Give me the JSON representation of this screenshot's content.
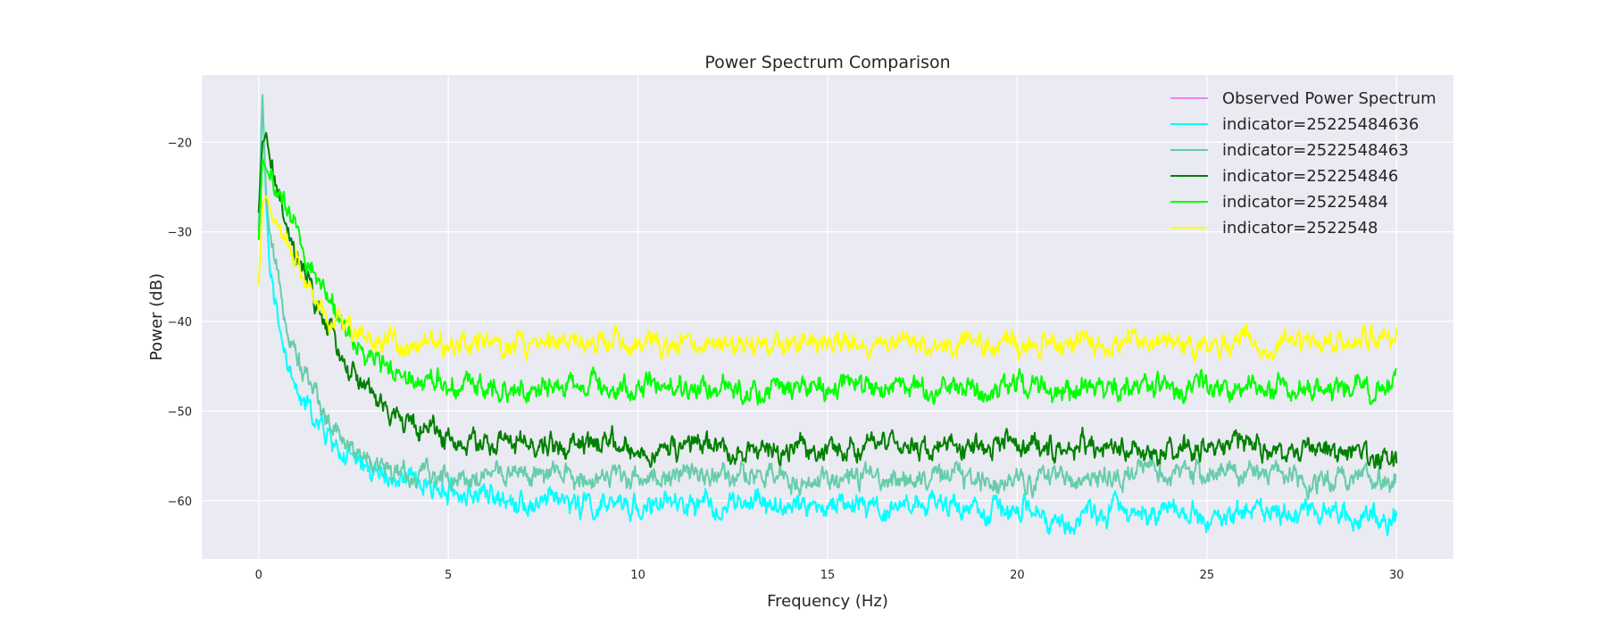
{
  "chart_data": {
    "type": "line",
    "title": "Power Spectrum Comparison",
    "xlabel": "Frequency (Hz)",
    "ylabel": "Power (dB)",
    "xlim": [
      -1.5,
      31.5
    ],
    "ylim": [
      -66.5,
      -12.5
    ],
    "xticks": [
      0,
      5,
      10,
      15,
      20,
      25,
      30
    ],
    "yticks": [
      -60,
      -50,
      -40,
      -30,
      -20
    ],
    "grid": true,
    "legend_position": "top-right",
    "series": [
      {
        "name": "Observed Power Spectrum",
        "color": "#ee82ee",
        "x": [],
        "y": []
      },
      {
        "name": "indicator=25225484636",
        "color": "#00ffff",
        "x": [
          0,
          0.05,
          0.1,
          0.2,
          0.3,
          0.5,
          0.75,
          1,
          1.5,
          2,
          2.5,
          3,
          3.5,
          4,
          4.5,
          5,
          6,
          7,
          8,
          9,
          10,
          12,
          14,
          16,
          18,
          20,
          21.4,
          22,
          24,
          25.2,
          26,
          28,
          30
        ],
        "y": [
          -30,
          -21,
          -15,
          -27,
          -35,
          -40,
          -45,
          -48,
          -51,
          -54,
          -55.5,
          -56.5,
          -57.5,
          -58,
          -58.5,
          -59,
          -59.5,
          -60,
          -60,
          -60.5,
          -60.5,
          -60.5,
          -60.5,
          -60.5,
          -60.5,
          -61,
          -63,
          -61,
          -61,
          -62,
          -61,
          -61,
          -62
        ]
      },
      {
        "name": "indicator=2522548463",
        "color": "#66cdaa",
        "x": [
          0,
          0.05,
          0.1,
          0.2,
          0.3,
          0.5,
          0.75,
          1,
          1.5,
          2,
          2.5,
          3,
          3.5,
          4,
          4.5,
          5,
          6,
          7,
          8,
          9,
          10,
          12,
          14,
          16,
          18,
          20,
          22,
          24,
          26,
          28,
          30
        ],
        "y": [
          -30,
          -22,
          -15,
          -26,
          -31,
          -36,
          -40,
          -44,
          -48,
          -52,
          -54,
          -56,
          -57,
          -57.5,
          -57,
          -57.5,
          -57,
          -57,
          -57.5,
          -57.5,
          -57.5,
          -57,
          -57.5,
          -57.5,
          -57.5,
          -57.5,
          -57.5,
          -57,
          -57,
          -57.5,
          -57.5
        ]
      },
      {
        "name": "indicator=252254846",
        "color": "#008000",
        "x": [
          0,
          0.1,
          0.2,
          0.3,
          0.5,
          0.75,
          1,
          1.5,
          2,
          2.5,
          3,
          3.5,
          4,
          4.5,
          5,
          6,
          7,
          8,
          9,
          10,
          12,
          14,
          16,
          18,
          20,
          22,
          24,
          26,
          28,
          30
        ],
        "y": [
          -28,
          -20,
          -19,
          -22,
          -26,
          -30,
          -33,
          -38,
          -42,
          -46,
          -48,
          -50,
          -51.5,
          -52,
          -53,
          -53.5,
          -54,
          -54,
          -54,
          -54.5,
          -54,
          -54.5,
          -54,
          -54,
          -54,
          -54,
          -54.5,
          -54,
          -54.5,
          -55
        ]
      },
      {
        "name": "indicator=25225484",
        "color": "#00ff00",
        "x": [
          0,
          0.1,
          0.2,
          0.3,
          0.5,
          0.75,
          1,
          1.5,
          2,
          2.5,
          3,
          3.5,
          4,
          4.5,
          5,
          6,
          7,
          8,
          9,
          10,
          12,
          14,
          16,
          18,
          20,
          22,
          24,
          26,
          28,
          30
        ],
        "y": [
          -31,
          -22,
          -23,
          -24,
          -26,
          -28,
          -30,
          -35,
          -38,
          -42,
          -44,
          -45,
          -46,
          -46.5,
          -47,
          -47,
          -47.5,
          -47.5,
          -47,
          -47.5,
          -47.5,
          -47.5,
          -47.5,
          -47.5,
          -47.5,
          -47.5,
          -47.5,
          -47.5,
          -47.5,
          -47.5
        ]
      },
      {
        "name": "indicator=2522548",
        "color": "#ffff00",
        "x": [
          0,
          0.1,
          0.2,
          0.3,
          0.5,
          0.75,
          1,
          1.5,
          2,
          2.5,
          3,
          3.5,
          4,
          4.5,
          5,
          6,
          7,
          8,
          9,
          10,
          12,
          14,
          16,
          18,
          20,
          22,
          24,
          26,
          28,
          30
        ],
        "y": [
          -36,
          -27,
          -26,
          -27,
          -29,
          -31,
          -33,
          -37,
          -39.5,
          -41,
          -42,
          -42,
          -42.5,
          -42.5,
          -42.5,
          -42.5,
          -42.5,
          -42.5,
          -42.5,
          -43,
          -42.5,
          -42.5,
          -42.5,
          -42.5,
          -42.5,
          -42.5,
          -42.5,
          -42.5,
          -42.5,
          -42
        ]
      }
    ]
  }
}
